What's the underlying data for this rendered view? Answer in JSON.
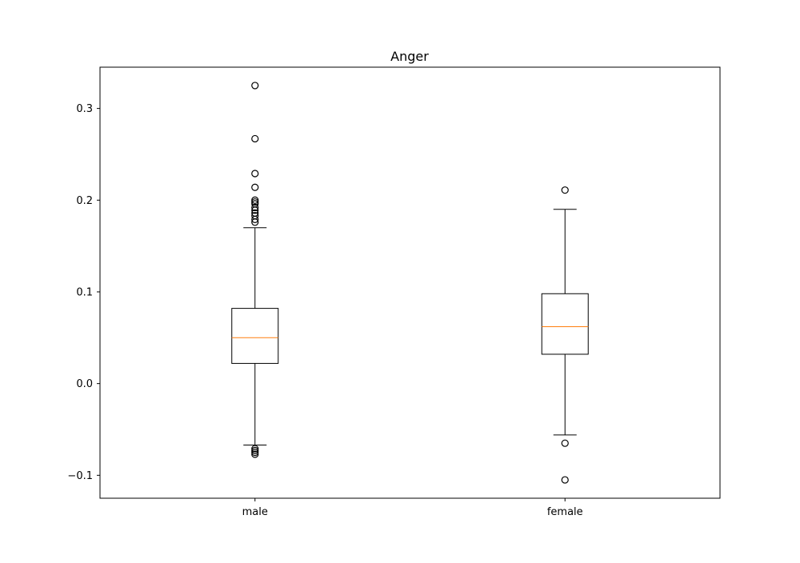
{
  "chart_data": {
    "type": "box",
    "title": "Anger",
    "xlabel": "",
    "ylabel": "",
    "ylim": [
      -0.125,
      0.345
    ],
    "yticks": [
      {
        "value": -0.1,
        "label": "−0.1"
      },
      {
        "value": 0.0,
        "label": "0.0"
      },
      {
        "value": 0.1,
        "label": "0.1"
      },
      {
        "value": 0.2,
        "label": "0.2"
      },
      {
        "value": 0.3,
        "label": "0.3"
      }
    ],
    "categories": [
      "male",
      "female"
    ],
    "boxes": [
      {
        "label": "male",
        "whisker_low": -0.067,
        "q1": 0.022,
        "median": 0.05,
        "q3": 0.082,
        "whisker_high": 0.17,
        "fliers": [
          0.325,
          0.267,
          0.229,
          0.214,
          0.2,
          0.198,
          0.196,
          0.192,
          0.189,
          0.186,
          0.183,
          0.179,
          0.176,
          -0.071,
          -0.073,
          -0.075,
          -0.077
        ]
      },
      {
        "label": "female",
        "whisker_low": -0.056,
        "q1": 0.032,
        "median": 0.062,
        "q3": 0.098,
        "whisker_high": 0.19,
        "fliers": [
          0.211,
          -0.065,
          -0.105
        ]
      }
    ],
    "colors": {
      "box": "#000000",
      "median": "#ff7f0e",
      "flier": "#000000"
    },
    "grid": false,
    "legend": "none"
  }
}
